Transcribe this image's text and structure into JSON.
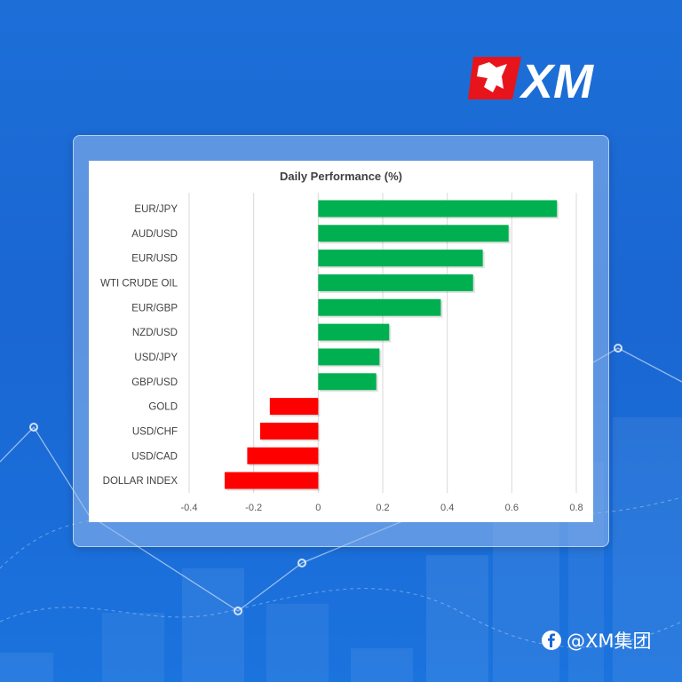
{
  "brand": {
    "logo_text": "XM",
    "watermark_text": "@XM集团",
    "watermark_icon": "facebook-icon",
    "logo_icon": "bull-logo-icon",
    "accent_red": "#e8141c",
    "background_blue": "#1a66d2"
  },
  "chart_data": {
    "type": "bar",
    "orientation": "horizontal",
    "title": "Daily Performance (%)",
    "xlabel": "",
    "ylabel": "",
    "categories": [
      "EUR/JPY",
      "AUD/USD",
      "EUR/USD",
      "WTI CRUDE OIL",
      "EUR/GBP",
      "NZD/USD",
      "USD/JPY",
      "GBP/USD",
      "GOLD",
      "USD/CHF",
      "USD/CAD",
      "DOLLAR INDEX"
    ],
    "values": [
      0.74,
      0.59,
      0.51,
      0.48,
      0.38,
      0.22,
      0.19,
      0.18,
      -0.15,
      -0.18,
      -0.22,
      -0.29
    ],
    "xlim": [
      -0.4,
      0.8
    ],
    "xticks": [
      -0.4,
      -0.2,
      0,
      0.2,
      0.4,
      0.6,
      0.8
    ],
    "xtick_labels": [
      "-0.4",
      "-0.2",
      "0",
      "0.2",
      "0.4",
      "0.6",
      "0.8"
    ],
    "grid": "vertical",
    "legend": "none",
    "colors": {
      "positive": "#00b050",
      "negative": "#ff0000"
    }
  }
}
